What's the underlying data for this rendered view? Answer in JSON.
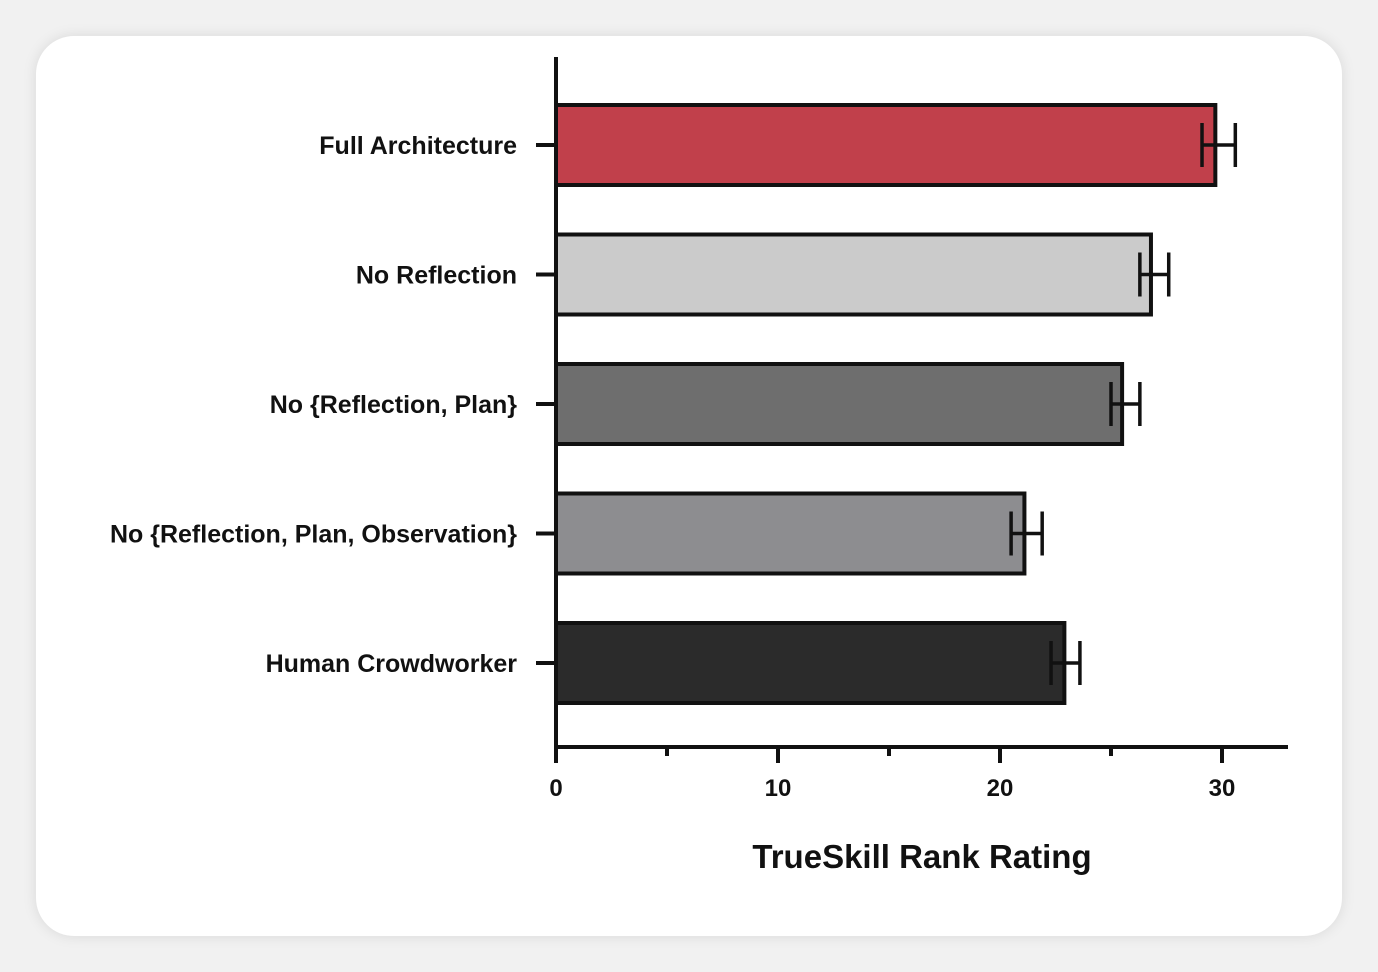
{
  "chart_data": {
    "type": "bar",
    "orientation": "horizontal",
    "categories": [
      "Full Architecture",
      "No Reflection",
      "No {Reflection, Plan}",
      "No {Reflection, Plan, Observation}",
      "Human Crowdworker"
    ],
    "values": [
      29.7,
      26.8,
      25.5,
      21.1,
      22.9
    ],
    "error_low": [
      29.1,
      26.3,
      25.0,
      20.5,
      22.3
    ],
    "error_high": [
      30.6,
      27.6,
      26.3,
      21.9,
      23.6
    ],
    "colors": [
      "#c1404b",
      "#cbcbcb",
      "#6e6e6e",
      "#8d8d90",
      "#2b2b2b"
    ],
    "xlabel": "TrueSkill Rank Rating",
    "ylabel": "",
    "xlim": [
      0,
      33
    ],
    "x_ticks": [
      0,
      10,
      20,
      30
    ],
    "x_minor_ticks": [
      5,
      15,
      25
    ],
    "grid": false
  }
}
